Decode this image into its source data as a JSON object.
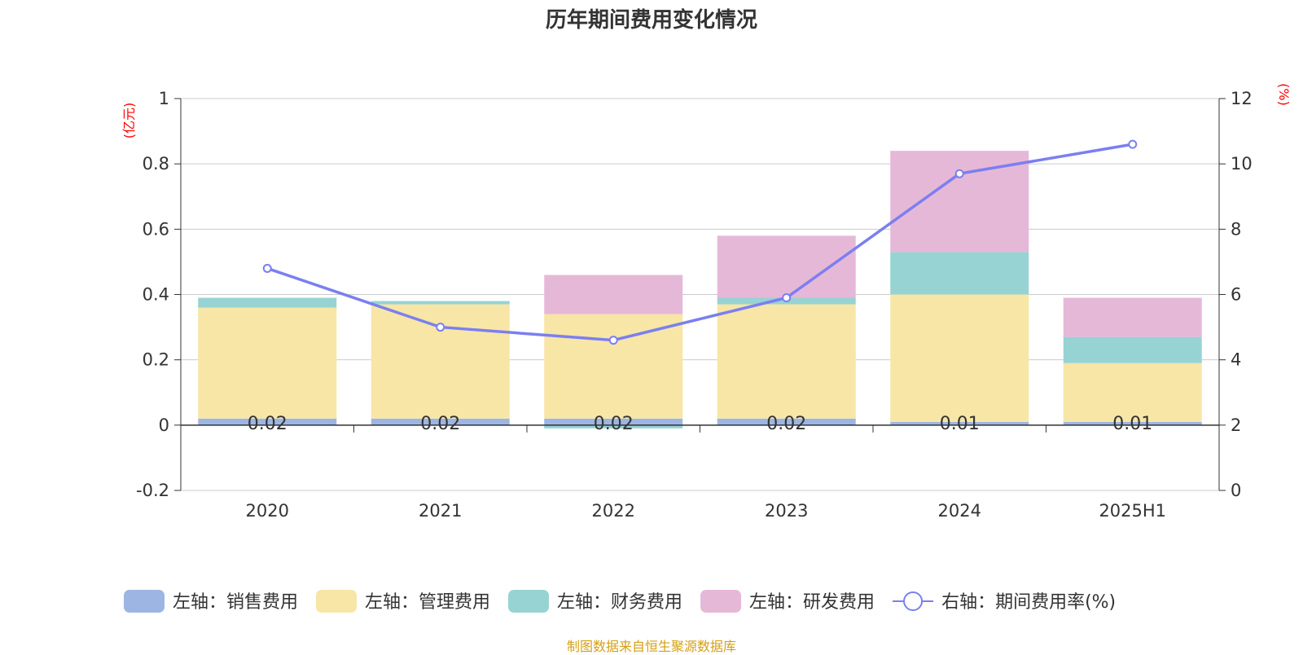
{
  "title": "历年期间费用变化情况",
  "source_note": "制图数据来自恒生聚源数据库",
  "colors": {
    "sales": "#9db5e2",
    "admin": "#f7e6a6",
    "finance": "#97d3d3",
    "rnd": "#e6b8d8",
    "rate_line": "#7b7ff0",
    "axis_unit": "#ff0000",
    "source_note": "#d4a017",
    "grid": "#cccccc"
  },
  "chart_data": {
    "type": "bar",
    "stacked": true,
    "categories": [
      "2020",
      "2021",
      "2022",
      "2023",
      "2024",
      "2025H1"
    ],
    "y_left_label": "(亿元)",
    "y_right_label": "(%)",
    "y_left_range": [
      -0.2,
      1
    ],
    "y_left_ticks": [
      "-0.2",
      "0",
      "0.2",
      "0.4",
      "0.6",
      "0.8",
      "1"
    ],
    "y_right_range": [
      0,
      12
    ],
    "y_right_ticks": [
      "0",
      "2",
      "4",
      "6",
      "8",
      "10",
      "12"
    ],
    "grid": true,
    "legend_position": "bottom",
    "series": [
      {
        "key": "sales",
        "name": "左轴：销售费用",
        "type": "bar",
        "axis": "left",
        "values": [
          0.02,
          0.02,
          0.02,
          0.02,
          0.01,
          0.01
        ],
        "labels": [
          "0.02",
          "0.02",
          "0.02",
          "0.02",
          "0.01",
          "0.01"
        ]
      },
      {
        "key": "admin",
        "name": "左轴：管理费用",
        "type": "bar",
        "axis": "left",
        "values": [
          0.34,
          0.35,
          0.32,
          0.35,
          0.39,
          0.18
        ]
      },
      {
        "key": "finance",
        "name": "左轴：财务费用",
        "type": "bar",
        "axis": "left",
        "values": [
          0.03,
          0.01,
          -0.01,
          0.02,
          0.13,
          0.08
        ]
      },
      {
        "key": "rnd",
        "name": "左轴：研发费用",
        "type": "bar",
        "axis": "left",
        "values": [
          0,
          0,
          0.12,
          0.19,
          0.31,
          0.12
        ]
      },
      {
        "key": "rate_line",
        "name": "右轴：期间费用率(%)",
        "type": "line",
        "axis": "right",
        "values": [
          6.8,
          5.0,
          4.6,
          5.9,
          9.7,
          10.6
        ]
      }
    ]
  }
}
